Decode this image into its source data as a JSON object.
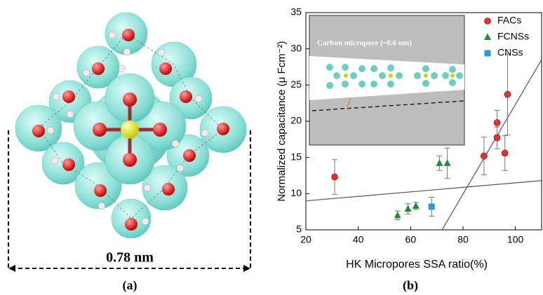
{
  "panels": {
    "a": {
      "label": "(a)",
      "dimension": "0.78 nm"
    },
    "b": {
      "label": "(b)"
    }
  },
  "chart_data": {
    "type": "scatter",
    "xlabel": "HK Micropores SSA ratio(%)",
    "ylabel": "Normalized capacitance (μ Fcm⁻²)",
    "annotation": "Carbon micropore (~0.6 nm)",
    "xlim": [
      20,
      110
    ],
    "xticks": [
      20,
      40,
      60,
      80,
      100
    ],
    "ylim": [
      5,
      35
    ],
    "yticks": [
      5,
      10,
      15,
      20,
      25,
      30,
      35
    ],
    "legend": "upper right",
    "series": [
      {
        "name": "FACs",
        "color": "#e8302e",
        "marker": "circle",
        "x": [
          31,
          88,
          93,
          93,
          96,
          97
        ],
        "values": [
          12.3,
          15.2,
          19.8,
          17.7,
          15.6,
          23.7
        ],
        "errors": [
          2.4,
          2.6,
          1.7,
          1.5,
          2.4,
          5.6
        ]
      },
      {
        "name": "FCNSs",
        "color": "#1f8a3a",
        "marker": "triangle",
        "x": [
          55,
          59,
          62,
          71,
          74
        ],
        "values": [
          7.0,
          7.9,
          8.3,
          14.2,
          14.2
        ],
        "errors": [
          0.6,
          0.7,
          0.5,
          1.0,
          2.1
        ]
      },
      {
        "name": "CNSs",
        "color": "#2a9bd8",
        "marker": "square",
        "x": [
          68
        ],
        "values": [
          8.2
        ],
        "errors": [
          1.3
        ]
      }
    ],
    "lines": [
      {
        "x": [
          20,
          110
        ],
        "y": [
          9,
          11.8
        ]
      },
      {
        "x": [
          72,
          110
        ],
        "y": [
          5,
          28.5
        ]
      }
    ]
  }
}
